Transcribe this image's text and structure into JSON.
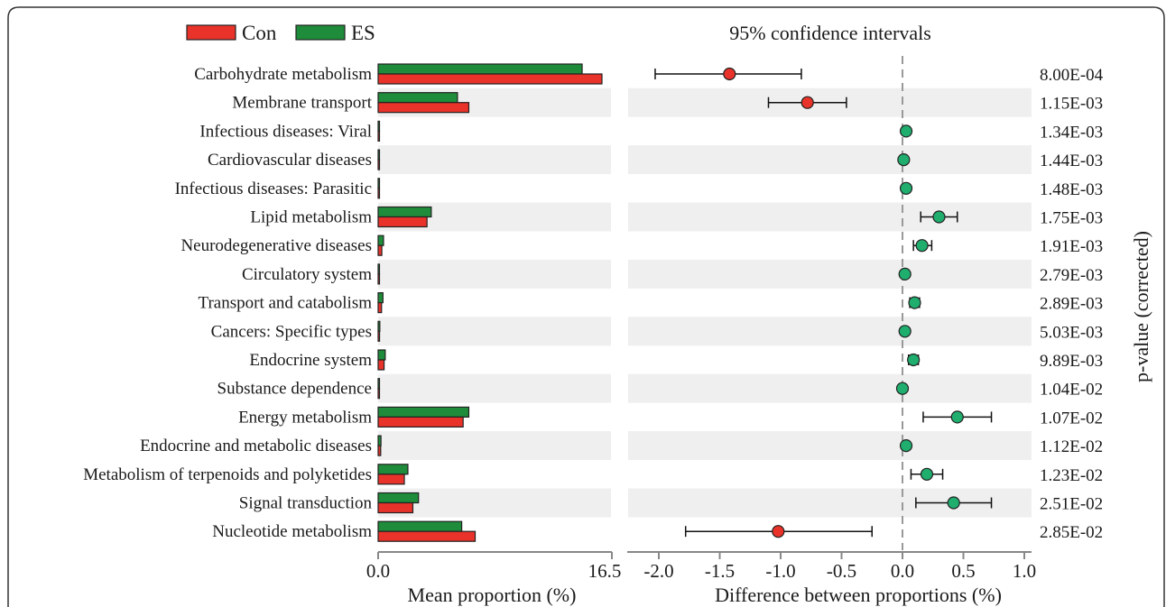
{
  "chart_data": {
    "type": "bar",
    "legend": [
      {
        "name": "Con",
        "color": "#e8322a"
      },
      {
        "name": "ES",
        "color": "#1e8c3a"
      }
    ],
    "categories": [
      "Carbohydrate metabolism",
      "Membrane transport",
      "Infectious diseases: Viral",
      "Cardiovascular diseases",
      "Infectious diseases: Parasitic",
      "Lipid metabolism",
      "Neurodegenerative diseases",
      "Circulatory system",
      "Transport and catabolism",
      "Cancers: Specific types",
      "Endocrine system",
      "Substance dependence",
      "Energy metabolism",
      "Endocrine and metabolic diseases",
      "Metabolism of terpenoids and polyketides",
      "Signal transduction",
      "Nucleotide metabolism"
    ],
    "bars": {
      "xlabel": "Mean proportion (%)",
      "xlim": [
        0.0,
        16.5
      ],
      "xticks": [
        "0.0",
        "16.5"
      ],
      "series": [
        {
          "name": "ES",
          "color": "#1e8c3a",
          "values": [
            14.4,
            5.6,
            0.06,
            0.04,
            0.06,
            3.75,
            0.38,
            0.06,
            0.34,
            0.12,
            0.5,
            0.05,
            6.4,
            0.2,
            2.1,
            2.85,
            5.9
          ]
        },
        {
          "name": "Con",
          "color": "#e8322a",
          "values": [
            15.8,
            6.4,
            0.05,
            0.04,
            0.05,
            3.45,
            0.26,
            0.05,
            0.24,
            0.1,
            0.42,
            0.04,
            6.0,
            0.18,
            1.85,
            2.45,
            6.85
          ]
        }
      ]
    },
    "ci": {
      "title": "95% confidence intervals",
      "xlabel": "Difference between proportions (%)",
      "xlim": [
        -2.2,
        1.0
      ],
      "xticks": [
        "-2.0",
        "-1.5",
        "-1.0",
        "-0.5",
        "0.0",
        "0.5",
        "1.0"
      ],
      "xtick_values": [
        -2.0,
        -1.5,
        -1.0,
        -0.5,
        0.0,
        0.5,
        1.0
      ],
      "points": [
        {
          "diff": -1.42,
          "low": -2.03,
          "high": -0.83,
          "color": "#e8322a"
        },
        {
          "diff": -0.78,
          "low": -1.1,
          "high": -0.46,
          "color": "#e8322a"
        },
        {
          "diff": 0.03,
          "low": 0.03,
          "high": 0.03,
          "color": "#1fae6e"
        },
        {
          "diff": 0.01,
          "low": 0.01,
          "high": 0.01,
          "color": "#1fae6e"
        },
        {
          "diff": 0.03,
          "low": 0.03,
          "high": 0.03,
          "color": "#1fae6e"
        },
        {
          "diff": 0.3,
          "low": 0.15,
          "high": 0.45,
          "color": "#1fae6e"
        },
        {
          "diff": 0.16,
          "low": 0.09,
          "high": 0.24,
          "color": "#1fae6e"
        },
        {
          "diff": 0.02,
          "low": 0.02,
          "high": 0.02,
          "color": "#1fae6e"
        },
        {
          "diff": 0.1,
          "low": 0.06,
          "high": 0.14,
          "color": "#1fae6e"
        },
        {
          "diff": 0.02,
          "low": 0.02,
          "high": 0.02,
          "color": "#1fae6e"
        },
        {
          "diff": 0.09,
          "low": 0.05,
          "high": 0.13,
          "color": "#1fae6e"
        },
        {
          "diff": 0.0,
          "low": 0.0,
          "high": 0.0,
          "color": "#1fae6e"
        },
        {
          "diff": 0.45,
          "low": 0.17,
          "high": 0.73,
          "color": "#1fae6e"
        },
        {
          "diff": 0.03,
          "low": 0.03,
          "high": 0.03,
          "color": "#1fae6e"
        },
        {
          "diff": 0.2,
          "low": 0.07,
          "high": 0.33,
          "color": "#1fae6e"
        },
        {
          "diff": 0.42,
          "low": 0.11,
          "high": 0.73,
          "color": "#1fae6e"
        },
        {
          "diff": -1.02,
          "low": -1.78,
          "high": -0.25,
          "color": "#e8322a"
        }
      ]
    },
    "pvalues": {
      "label": "p-value (corrected)",
      "values": [
        "8.00E-04",
        "1.15E-03",
        "1.34E-03",
        "1.44E-03",
        "1.48E-03",
        "1.75E-03",
        "1.91E-03",
        "2.79E-03",
        "2.89E-03",
        "5.03E-03",
        "9.89E-03",
        "1.04E-02",
        "1.07E-02",
        "1.12E-02",
        "1.23E-02",
        "2.51E-02",
        "2.85E-02"
      ]
    }
  }
}
